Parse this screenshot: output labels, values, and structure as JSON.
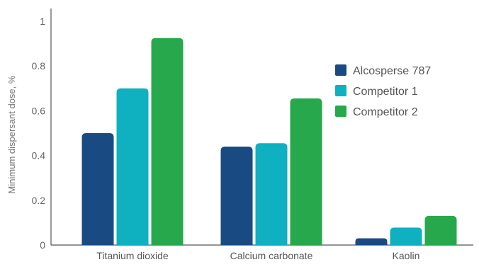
{
  "chart_data": {
    "type": "bar",
    "title": "",
    "xlabel": "",
    "ylabel": "Minimum dispersant dose, %",
    "ylim": [
      0,
      1
    ],
    "yticks": [
      {
        "value": 0,
        "label": "0"
      },
      {
        "value": 0.2,
        "label": "0.2"
      },
      {
        "value": 0.4,
        "label": "0.4"
      },
      {
        "value": 0.6,
        "label": "0.6"
      },
      {
        "value": 0.8,
        "label": "0.8"
      },
      {
        "value": 1,
        "label": "1"
      }
    ],
    "categories": [
      "Titanium dioxide",
      "Calcium carbonate",
      "Kaolin"
    ],
    "series": [
      {
        "name": "Alcosperse 787",
        "color": "#1a4a82",
        "values": [
          0.5,
          0.44,
          0.03
        ]
      },
      {
        "name": "Competitor 1",
        "color": "#0fb0c0",
        "values": [
          0.7,
          0.455,
          0.078
        ]
      },
      {
        "name": "Competitor 2",
        "color": "#27a84c",
        "values": [
          0.925,
          0.655,
          0.13
        ]
      }
    ],
    "grid": false,
    "legend_position": "right"
  }
}
